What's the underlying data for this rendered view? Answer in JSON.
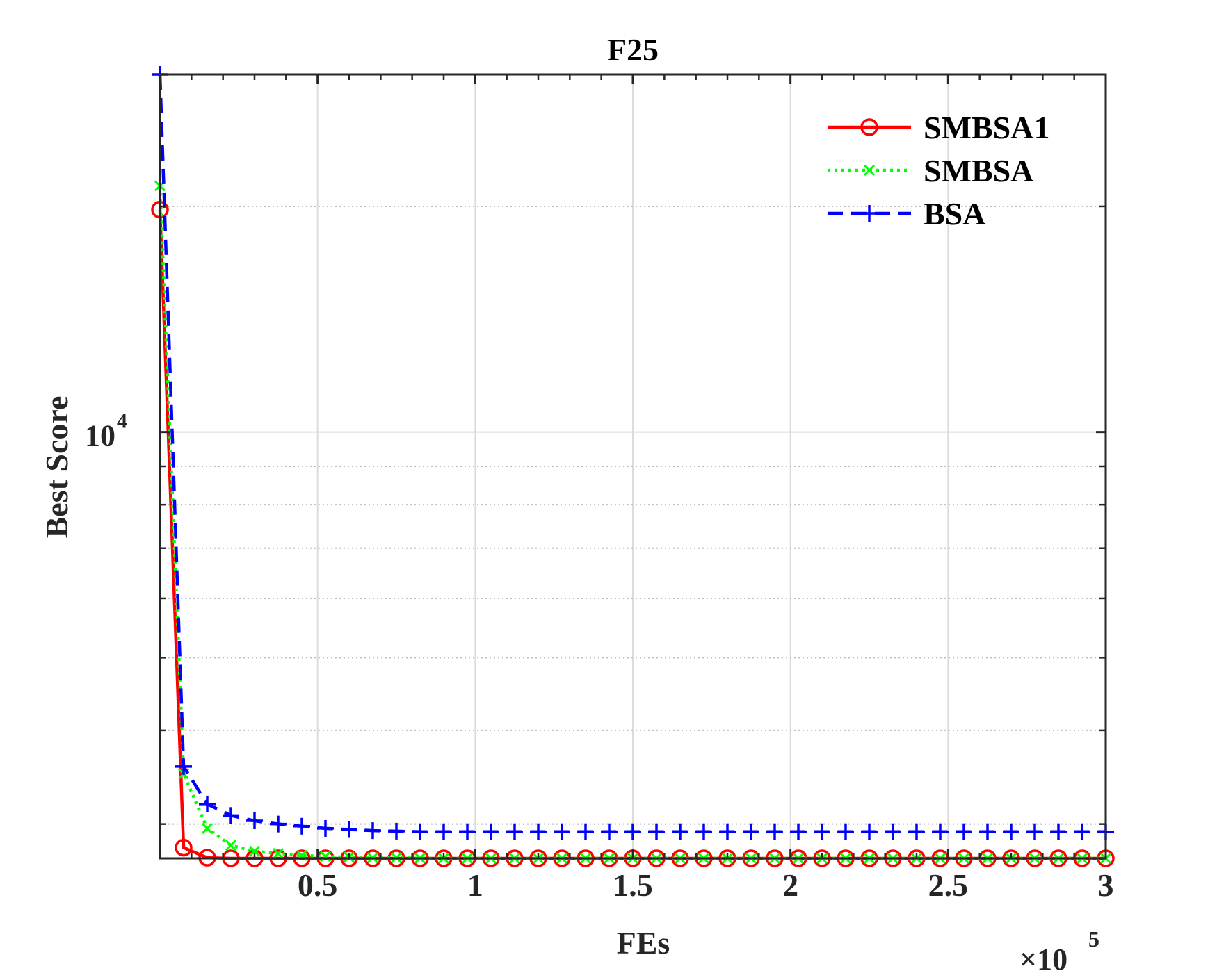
{
  "chart_data": {
    "type": "line",
    "title": "F25",
    "xlabel": "FEs",
    "ylabel": "Best Score",
    "x_multiplier_label": "×10",
    "x_multiplier_exp": "5",
    "x_scale": 100000,
    "xlim": [
      0,
      300000
    ],
    "ylim": [
      2700,
      30000
    ],
    "yscale": "log",
    "grid": "major-and-minor",
    "legend_position": "top-right",
    "x_ticks": [
      50000,
      100000,
      150000,
      200000,
      250000,
      300000
    ],
    "x_tick_labels": [
      "0.5",
      "1",
      "1.5",
      "2",
      "2.5",
      "3"
    ],
    "y_ticks": [
      10000
    ],
    "y_tick_labels": [
      {
        "base": "10",
        "exp": "4"
      }
    ],
    "y_minor_ticks": [
      3000,
      4000,
      5000,
      6000,
      7000,
      8000,
      9000,
      20000,
      30000
    ],
    "x": [
      0,
      7500,
      15000,
      22500,
      30000,
      37500,
      45000,
      52500,
      60000,
      67500,
      75000,
      82500,
      90000,
      97500,
      105000,
      112500,
      120000,
      127500,
      135000,
      142500,
      150000,
      157500,
      165000,
      172500,
      180000,
      187500,
      195000,
      202500,
      210000,
      217500,
      225000,
      232500,
      240000,
      247500,
      255000,
      262500,
      270000,
      277500,
      285000,
      292500,
      300000
    ],
    "series": [
      {
        "name": "SMBSA1",
        "color": "#ff0000",
        "line_style": "solid",
        "marker": "circle",
        "values": [
          19800,
          2790,
          2705,
          2700,
          2700,
          2700,
          2700,
          2700,
          2700,
          2700,
          2700,
          2700,
          2700,
          2700,
          2700,
          2700,
          2700,
          2700,
          2700,
          2700,
          2700,
          2700,
          2700,
          2700,
          2700,
          2700,
          2700,
          2700,
          2700,
          2700,
          2700,
          2700,
          2700,
          2700,
          2700,
          2700,
          2700,
          2700,
          2700,
          2700,
          2700
        ]
      },
      {
        "name": "SMBSA",
        "color": "#00ff00",
        "line_style": "dotted",
        "marker": "x",
        "values": [
          21300,
          3500,
          2960,
          2810,
          2760,
          2740,
          2725,
          2715,
          2710,
          2705,
          2705,
          2702,
          2700,
          2700,
          2700,
          2700,
          2700,
          2700,
          2700,
          2700,
          2700,
          2700,
          2700,
          2700,
          2700,
          2700,
          2700,
          2700,
          2700,
          2700,
          2700,
          2700,
          2700,
          2700,
          2700,
          2700,
          2700,
          2700,
          2700,
          2700,
          2700
        ]
      },
      {
        "name": "BSA",
        "color": "#0000ff",
        "line_style": "dashed",
        "marker": "plus",
        "values": [
          30000,
          3580,
          3190,
          3080,
          3030,
          3000,
          2980,
          2960,
          2950,
          2940,
          2935,
          2930,
          2930,
          2930,
          2930,
          2930,
          2930,
          2930,
          2930,
          2930,
          2930,
          2930,
          2930,
          2930,
          2930,
          2930,
          2930,
          2930,
          2930,
          2930,
          2930,
          2930,
          2930,
          2930,
          2930,
          2930,
          2930,
          2930,
          2930,
          2930,
          2930
        ]
      }
    ]
  }
}
